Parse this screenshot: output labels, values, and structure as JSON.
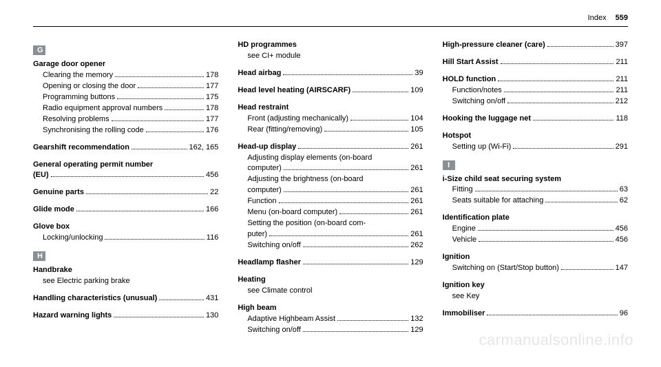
{
  "header": {
    "label": "Index",
    "page": "559"
  },
  "colors": {
    "section_bar_bg": "#888f95",
    "section_bar_fg": "#ffffff",
    "text": "#000000",
    "bg": "#ffffff"
  },
  "watermark": "carmanualsonline.info",
  "col1": {
    "sections": [
      {
        "letter": "G",
        "entries": [
          {
            "title": "Garage door opener",
            "subs": [
              {
                "label": "Clearing the memory",
                "page": "178"
              },
              {
                "label": "Opening or closing the door",
                "page": "177"
              },
              {
                "label": "Programming buttons",
                "page": "175"
              },
              {
                "label": "Radio equipment approval numbers",
                "page": "178"
              },
              {
                "label": "Resolving problems",
                "page": "177"
              },
              {
                "label": "Synchronising the rolling code",
                "page": "176"
              }
            ]
          },
          {
            "titleLine": {
              "label": "Gearshift recommendation",
              "page": "162, 165"
            }
          },
          {
            "title2": "General operating permit number",
            "titleLine": {
              "label": "(EU)",
              "page": "456"
            }
          },
          {
            "titleLine": {
              "label": "Genuine parts",
              "page": "22"
            }
          },
          {
            "titleLine": {
              "label": "Glide mode",
              "page": "166"
            }
          },
          {
            "title": "Glove box",
            "subs": [
              {
                "label": "Locking/unlocking",
                "page": "116"
              }
            ]
          }
        ]
      },
      {
        "letter": "H",
        "entries": [
          {
            "title": "Handbrake",
            "see": "see Electric parking brake"
          },
          {
            "titleLine": {
              "label": "Handling characteristics (unusual)",
              "page": "431"
            }
          },
          {
            "titleLine": {
              "label": "Hazard warning lights",
              "page": "130"
            }
          }
        ]
      }
    ]
  },
  "col2": {
    "entries": [
      {
        "title": "HD programmes",
        "see": "see CI+ module"
      },
      {
        "titleLine": {
          "label": "Head airbag",
          "page": "39"
        }
      },
      {
        "titleLine": {
          "label": "Head level heating (AIRSCARF)",
          "page": "109"
        }
      },
      {
        "title": "Head restraint",
        "subs": [
          {
            "label": "Front (adjusting mechanically)",
            "page": "104"
          },
          {
            "label": "Rear (fitting/removing)",
            "page": "105"
          }
        ]
      },
      {
        "titleLine": {
          "label": "Head-up display",
          "page": "261"
        },
        "subs": [
          {
            "wrap": "Adjusting display elements (on-board",
            "label": "computer)",
            "page": "261"
          },
          {
            "wrap": "Adjusting the brightness (on-board",
            "label": "computer)",
            "page": "261"
          },
          {
            "label": "Function",
            "page": "261"
          },
          {
            "label": "Menu (on-board computer)",
            "page": "261"
          },
          {
            "wrap": "Setting the position (on-board com-",
            "label": "puter)",
            "page": "261"
          },
          {
            "label": "Switching on/off",
            "page": "262"
          }
        ]
      },
      {
        "titleLine": {
          "label": "Headlamp flasher",
          "page": "129"
        }
      },
      {
        "title": "Heating",
        "see": "see Climate control"
      },
      {
        "title": "High beam",
        "subs": [
          {
            "label": "Adaptive Highbeam Assist",
            "page": "132"
          },
          {
            "label": "Switching on/off",
            "page": "129"
          }
        ]
      }
    ]
  },
  "col3": {
    "entries": [
      {
        "titleLine": {
          "label": "High-pressure cleaner (care)",
          "page": "397"
        }
      },
      {
        "titleLine": {
          "label": "Hill Start Assist",
          "page": "211"
        }
      },
      {
        "titleLine": {
          "label": "HOLD function",
          "page": "211"
        },
        "subs": [
          {
            "label": "Function/notes",
            "page": "211"
          },
          {
            "label": "Switching on/off",
            "page": "212"
          }
        ]
      },
      {
        "titleLine": {
          "label": "Hooking the luggage net",
          "page": "118"
        }
      },
      {
        "title": "Hotspot",
        "subs": [
          {
            "label": "Setting up (Wi-Fi)",
            "page": "291"
          }
        ]
      }
    ],
    "sections": [
      {
        "letter": "I",
        "entries": [
          {
            "title": "i-Size child seat securing system",
            "subs": [
              {
                "label": "Fitting",
                "page": "63"
              },
              {
                "label": "Seats suitable for attaching",
                "page": "62"
              }
            ]
          },
          {
            "title": "Identification plate",
            "subs": [
              {
                "label": "Engine",
                "page": "456"
              },
              {
                "label": "Vehicle",
                "page": "456"
              }
            ]
          },
          {
            "title": "Ignition",
            "subs": [
              {
                "label": "Switching on (Start/Stop button)",
                "page": "147"
              }
            ]
          },
          {
            "title": "Ignition key",
            "see": "see Key"
          },
          {
            "titleLine": {
              "label": "Immobiliser",
              "page": "96"
            }
          }
        ]
      }
    ]
  }
}
